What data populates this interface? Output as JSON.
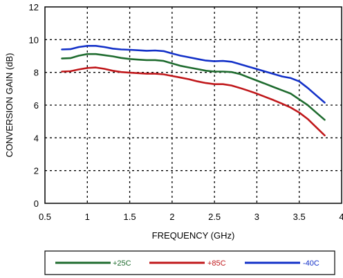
{
  "chart_data": {
    "type": "line",
    "xlabel": "FREQUENCY (GHz)",
    "ylabel": "CONVERSION GAIN (dB)",
    "xlim": [
      0.5,
      4
    ],
    "ylim": [
      0,
      12
    ],
    "xticks": [
      0.5,
      1,
      1.5,
      2,
      2.5,
      3,
      3.5,
      4
    ],
    "xtick_labels": [
      "0.5",
      "1",
      "1.5",
      "2",
      "2.5",
      "3",
      "3.5",
      "4"
    ],
    "yticks": [
      0,
      2,
      4,
      6,
      8,
      10,
      12
    ],
    "ytick_labels": [
      "0",
      "2",
      "4",
      "6",
      "8",
      "10",
      "12"
    ],
    "grid": true,
    "grid_style": "dotted",
    "legend_position": "bottom",
    "series": [
      {
        "name": "+25C",
        "color": "#1e6b2e",
        "x": [
          0.7,
          0.8,
          0.9,
          1.0,
          1.1,
          1.2,
          1.3,
          1.4,
          1.5,
          1.6,
          1.7,
          1.8,
          1.9,
          2.0,
          2.1,
          2.2,
          2.3,
          2.4,
          2.5,
          2.6,
          2.7,
          2.8,
          2.9,
          3.0,
          3.1,
          3.2,
          3.3,
          3.4,
          3.5,
          3.6,
          3.7,
          3.8
        ],
        "y": [
          8.85,
          8.87,
          9.02,
          9.12,
          9.12,
          9.05,
          8.98,
          8.88,
          8.82,
          8.78,
          8.75,
          8.75,
          8.7,
          8.55,
          8.4,
          8.3,
          8.2,
          8.1,
          8.05,
          8.05,
          8.02,
          7.9,
          7.7,
          7.5,
          7.3,
          7.1,
          6.9,
          6.7,
          6.35,
          6.0,
          5.55,
          5.1
        ]
      },
      {
        "name": "+85C",
        "color": "#c0171a",
        "x": [
          0.7,
          0.8,
          0.9,
          1.0,
          1.1,
          1.2,
          1.3,
          1.4,
          1.5,
          1.6,
          1.7,
          1.8,
          1.9,
          2.0,
          2.1,
          2.2,
          2.3,
          2.4,
          2.5,
          2.6,
          2.7,
          2.8,
          2.9,
          3.0,
          3.1,
          3.2,
          3.3,
          3.4,
          3.5,
          3.6,
          3.7,
          3.8
        ],
        "y": [
          8.05,
          8.07,
          8.18,
          8.27,
          8.3,
          8.22,
          8.1,
          8.02,
          7.98,
          7.95,
          7.92,
          7.92,
          7.88,
          7.78,
          7.68,
          7.58,
          7.45,
          7.35,
          7.28,
          7.28,
          7.2,
          7.05,
          6.88,
          6.7,
          6.5,
          6.3,
          6.08,
          5.85,
          5.55,
          5.15,
          4.65,
          4.15
        ]
      },
      {
        "name": "-40C",
        "color": "#1230c8",
        "x": [
          0.7,
          0.8,
          0.9,
          1.0,
          1.1,
          1.2,
          1.3,
          1.4,
          1.5,
          1.6,
          1.7,
          1.8,
          1.9,
          2.0,
          2.1,
          2.2,
          2.3,
          2.4,
          2.5,
          2.6,
          2.7,
          2.8,
          2.9,
          3.0,
          3.1,
          3.2,
          3.3,
          3.4,
          3.5,
          3.6,
          3.7,
          3.8
        ],
        "y": [
          9.4,
          9.42,
          9.55,
          9.62,
          9.62,
          9.55,
          9.45,
          9.4,
          9.38,
          9.35,
          9.32,
          9.34,
          9.3,
          9.15,
          9.02,
          8.92,
          8.82,
          8.72,
          8.68,
          8.7,
          8.65,
          8.5,
          8.35,
          8.2,
          8.05,
          7.9,
          7.75,
          7.65,
          7.45,
          7.05,
          6.6,
          6.15
        ]
      }
    ]
  }
}
